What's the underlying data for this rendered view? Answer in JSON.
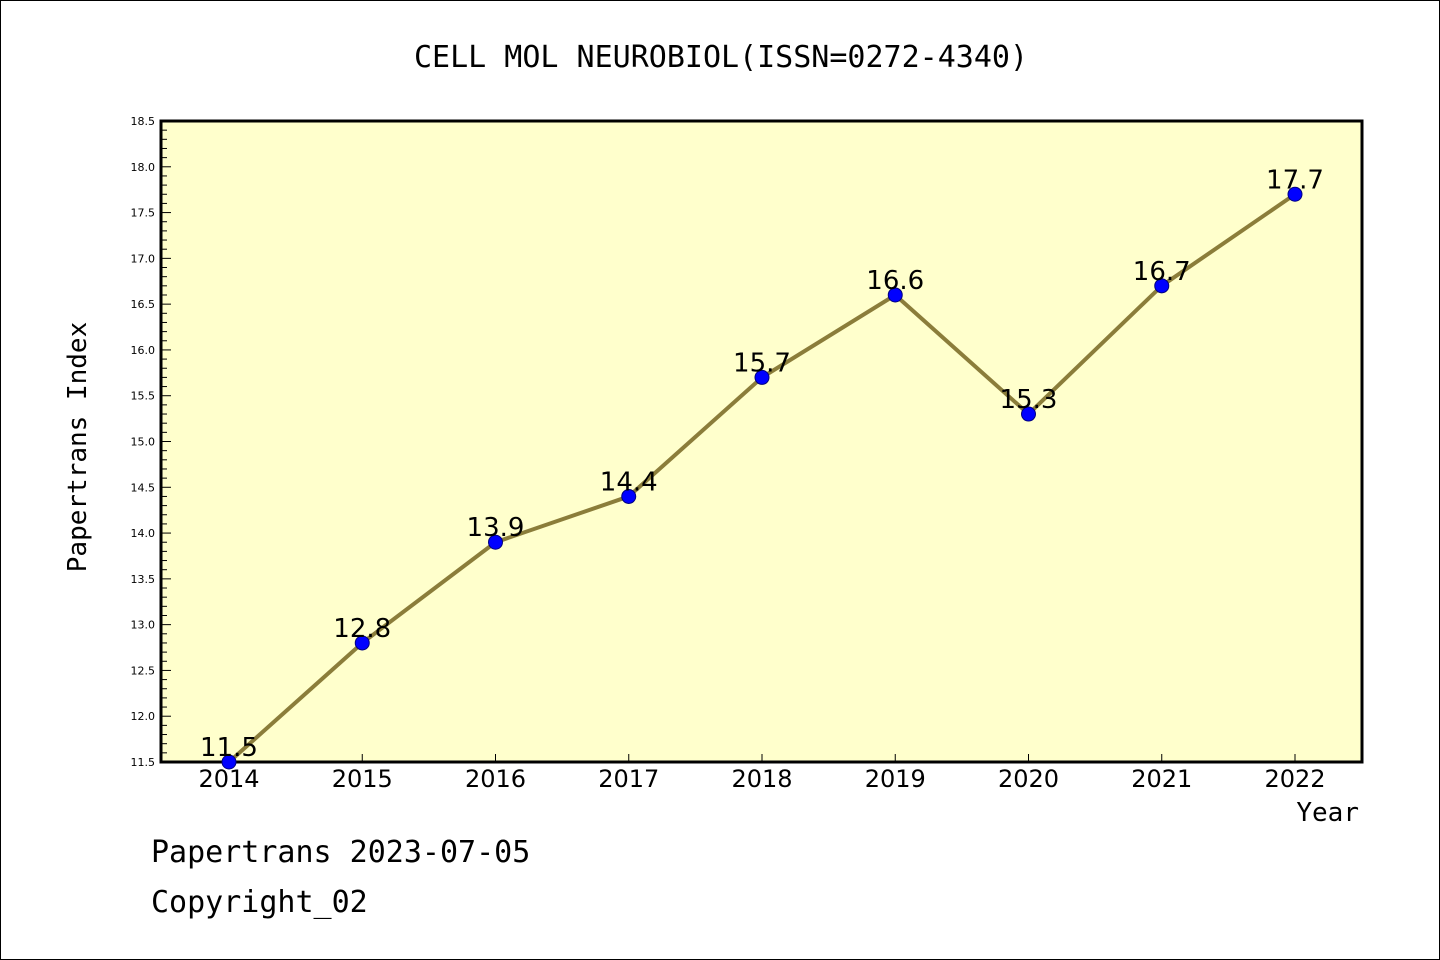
{
  "chart_data": {
    "type": "line",
    "title": "CELL MOL NEUROBIOL(ISSN=0272-4340)",
    "xlabel": "Year",
    "ylabel": "Papertrans Index",
    "categories": [
      "2014",
      "2015",
      "2016",
      "2017",
      "2018",
      "2019",
      "2020",
      "2021",
      "2022"
    ],
    "series": [
      {
        "values": [
          11.5,
          12.8,
          13.9,
          14.4,
          15.7,
          16.6,
          15.3,
          16.7,
          17.7
        ],
        "labels": [
          "11.5",
          "12.8",
          "13.9",
          "14.4",
          "15.7",
          "16.6",
          "15.3",
          "16.7",
          "17.7"
        ]
      }
    ],
    "ylim": [
      11.5,
      18.5
    ],
    "yticks": [
      "11.5",
      "12.0",
      "12.5",
      "13.0",
      "13.5",
      "14.0",
      "14.5",
      "15.0",
      "15.5",
      "16.0",
      "16.5",
      "17.0",
      "17.5",
      "18.0",
      "18.5"
    ],
    "grid": false,
    "colors": {
      "plot_background": "#ffffcc",
      "line": "#8b7d3a",
      "marker_fill": "#0000ff",
      "marker_stroke": "#000080"
    }
  },
  "footer": {
    "date_line": "Papertrans 2023-07-05",
    "copyright_line": "Copyright_02"
  }
}
